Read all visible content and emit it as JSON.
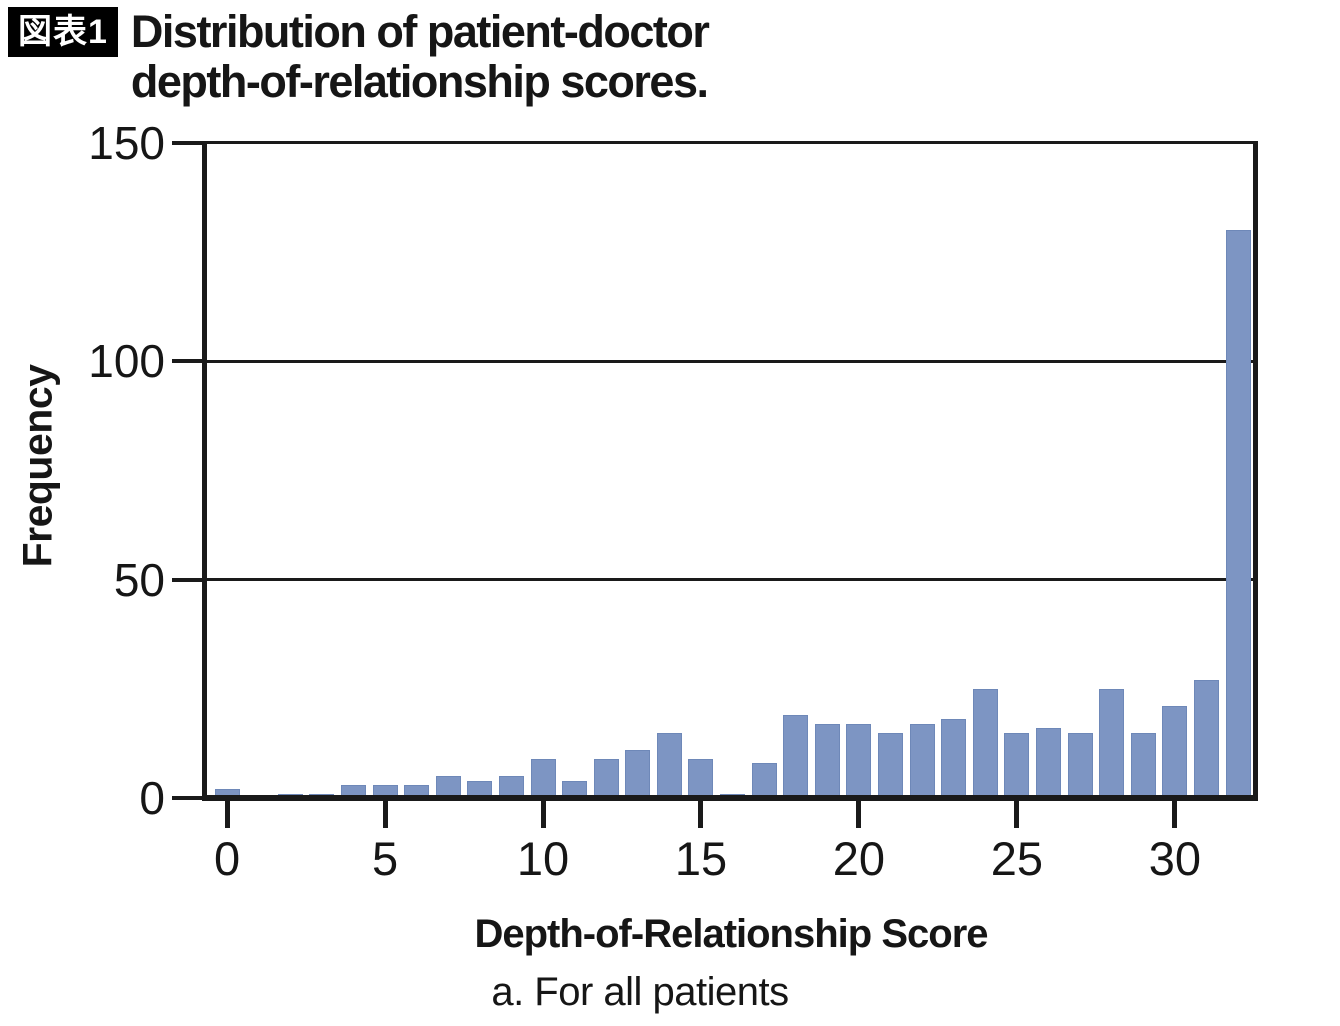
{
  "figure": {
    "badge_label": "図表1",
    "title_line1": "Distribution of patient-doctor",
    "title_line2": "depth-of-relationship scores."
  },
  "chart_data": {
    "type": "bar",
    "title": "Distribution of patient-doctor depth-of-relationship scores.",
    "panel_caption": "a. For all patients",
    "xlabel": "Depth-of-Relationship Score",
    "ylabel": "Frequency",
    "x": [
      0,
      1,
      2,
      3,
      4,
      5,
      6,
      7,
      8,
      9,
      10,
      11,
      12,
      13,
      14,
      15,
      16,
      17,
      18,
      19,
      20,
      21,
      22,
      23,
      24,
      25,
      26,
      27,
      28,
      29,
      30,
      31,
      32
    ],
    "values": [
      2,
      0,
      1,
      1,
      3,
      3,
      3,
      5,
      4,
      5,
      9,
      4,
      9,
      11,
      15,
      9,
      1,
      8,
      19,
      17,
      17,
      15,
      17,
      18,
      25,
      15,
      16,
      15,
      25,
      15,
      21,
      27,
      130
    ],
    "xticks": [
      "0",
      "5",
      "10",
      "15",
      "20",
      "25",
      "30"
    ],
    "xtick_values": [
      0,
      5,
      10,
      15,
      20,
      25,
      30
    ],
    "yticks": [
      "0",
      "50",
      "100",
      "150"
    ],
    "ytick_values": [
      0,
      50,
      100,
      150
    ],
    "xlim": [
      -0.7,
      32.6
    ],
    "ylim": [
      0,
      150
    ],
    "grid": "horizontal gridlines at 50 and 100",
    "legend": "none",
    "bar_color": "#7d95c3",
    "bar_edge_color": "#6e88b8",
    "axis_color": "#1a1a1a"
  }
}
